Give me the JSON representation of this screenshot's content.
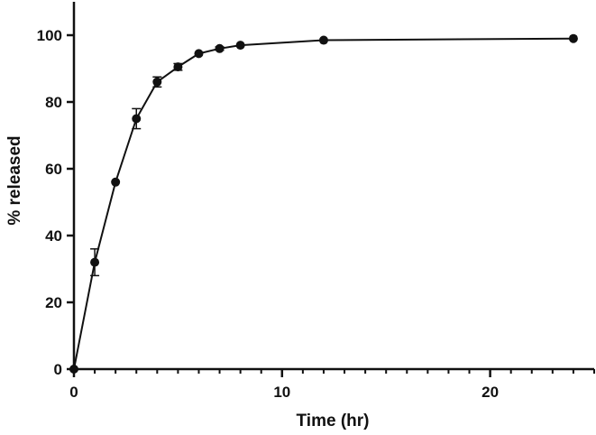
{
  "chart_data": {
    "type": "line",
    "title": "",
    "xlabel": "Time (hr)",
    "ylabel": "% released",
    "xlim": [
      0,
      25
    ],
    "ylim": [
      0,
      110
    ],
    "x_major_ticks": [
      0,
      10,
      20
    ],
    "x_minor_step": 1,
    "y_ticks": [
      0,
      20,
      40,
      60,
      80,
      100
    ],
    "grid": false,
    "legend": "none",
    "markers": true,
    "error_bars": true,
    "color": "#111111",
    "series": [
      {
        "x": [
          0,
          1,
          2,
          3,
          4,
          5,
          6,
          7,
          8,
          12,
          24
        ],
        "y": [
          0,
          32,
          56,
          75,
          86,
          90.5,
          94.5,
          96,
          97,
          98.5,
          99
        ],
        "error": [
          0,
          4,
          0,
          3,
          1.5,
          1,
          0,
          0.5,
          0,
          0,
          0
        ]
      }
    ]
  }
}
